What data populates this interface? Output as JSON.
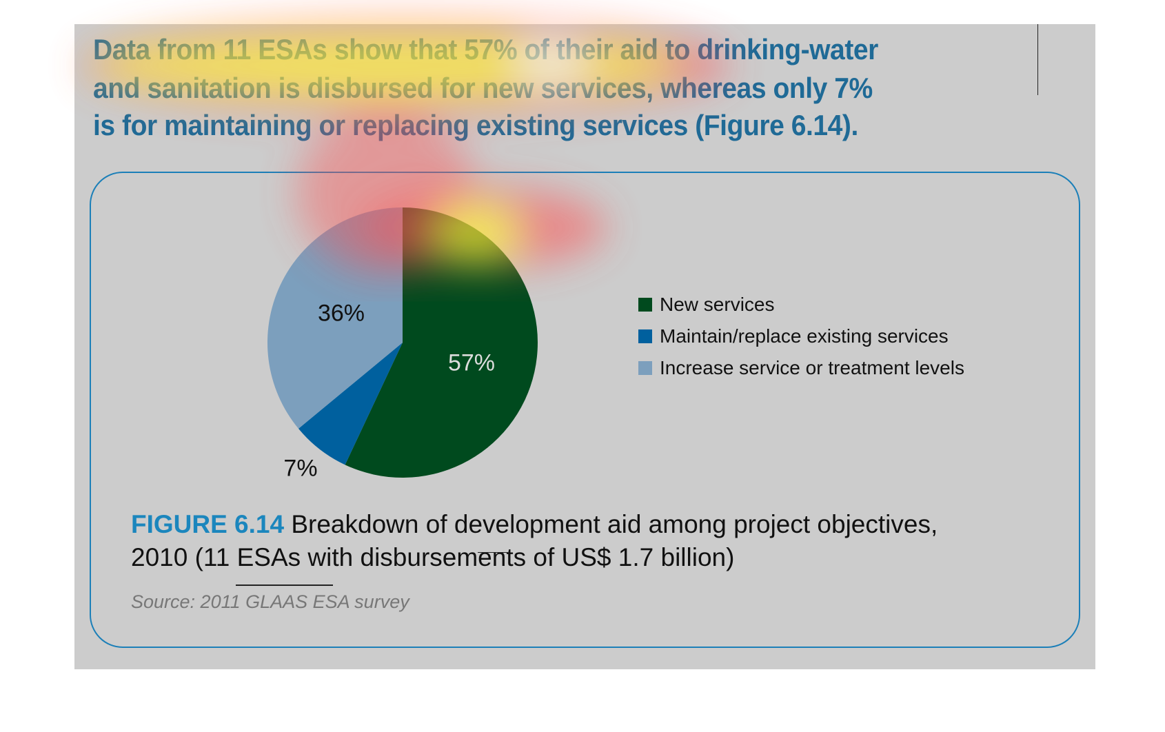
{
  "headline": {
    "lines": [
      "Data from 11 ESAs show that 57% of their aid to drinking-water",
      "and sanitation is disbursed for new services, whereas only 7%",
      "is for maintaining or replacing existing services (Figure 6.14)."
    ]
  },
  "chart_data": {
    "type": "pie",
    "title": "Breakdown of development aid among project objectives, 2010",
    "slices": [
      {
        "label": "New services",
        "value": 57,
        "display": "57%",
        "color": "#004a1e"
      },
      {
        "label": "Maintain/replace existing services",
        "value": 7,
        "display": "7%",
        "color": "#00609e"
      },
      {
        "label": "Increase service or treatment levels",
        "value": 36,
        "display": "36%",
        "color": "#7c9fbd"
      }
    ],
    "start_angle": "top, clockwise",
    "legend_placement": "right"
  },
  "caption": {
    "figure_label": "FIGURE 6.14",
    "line1": "Breakdown of development aid among project objectives,",
    "line2": "2010 (11 ESAs with disbursements of US$ 1.7 billion)",
    "source": "Source: 2011 GLAAS ESA survey"
  },
  "colors": {
    "accent": "#1b86bd",
    "background": "#cccccc",
    "headline": "#1f6a96"
  }
}
